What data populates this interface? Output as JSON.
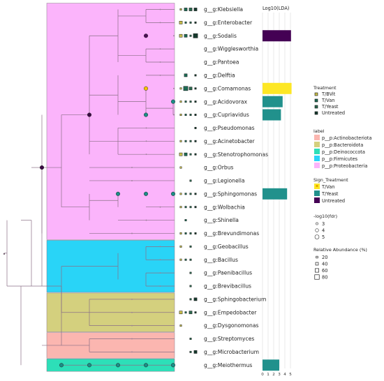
{
  "chart_data": {
    "type": "bar",
    "title": "Log10(LDA)",
    "xlim": [
      0,
      5
    ],
    "xticks": [
      "0",
      "1",
      "2",
      "3",
      "4",
      "5"
    ],
    "taxa": [
      {
        "name": "g__g:Klebsiella",
        "phylum": "Proteobacteria",
        "ab": [
          1,
          2,
          2,
          2
        ],
        "lda": null,
        "sign": null
      },
      {
        "name": "g__g:Enterobacter",
        "phylum": "Proteobacteria",
        "ab": [
          2,
          1,
          1,
          1
        ],
        "lda": null,
        "sign": null
      },
      {
        "name": "g__g:Sodalis",
        "phylum": "Proteobacteria",
        "ab": [
          2,
          2,
          1,
          3
        ],
        "lda": 5.1,
        "sign": "Untreated"
      },
      {
        "name": "g__g:Wigglesworthia",
        "phylum": "Proteobacteria",
        "ab": [
          0,
          0,
          0,
          0
        ],
        "lda": null,
        "sign": null
      },
      {
        "name": "g__g:Pantoea",
        "phylum": "Proteobacteria",
        "ab": [
          0,
          0,
          0,
          0
        ],
        "lda": null,
        "sign": null
      },
      {
        "name": "g__g:Delftia",
        "phylum": "Proteobacteria",
        "ab": [
          0,
          2,
          0,
          1
        ],
        "lda": null,
        "sign": null
      },
      {
        "name": "g__g:Comamonas",
        "phylum": "Proteobacteria",
        "ab": [
          1,
          3,
          2,
          1
        ],
        "lda": 5.2,
        "sign": "T/Van"
      },
      {
        "name": "g__g:Acidovorax",
        "phylum": "Proteobacteria",
        "ab": [
          1,
          1,
          1,
          1
        ],
        "lda": 3.6,
        "sign": "T/Yeast"
      },
      {
        "name": "g__g:Cupriavidus",
        "phylum": "Proteobacteria",
        "ab": [
          1,
          1,
          1,
          1
        ],
        "lda": 3.3,
        "sign": "T/Yeast"
      },
      {
        "name": "g__g:Pseudomonas",
        "phylum": "Proteobacteria",
        "ab": [
          0,
          0,
          0,
          1
        ],
        "lda": null,
        "sign": null
      },
      {
        "name": "g__g:Acinetobacter",
        "phylum": "Proteobacteria",
        "ab": [
          1,
          1,
          1,
          1
        ],
        "lda": null,
        "sign": null
      },
      {
        "name": "g__g:Stenotrophomonas",
        "phylum": "Proteobacteria",
        "ab": [
          2,
          2,
          1,
          1
        ],
        "lda": null,
        "sign": null
      },
      {
        "name": "g__g:Orbus",
        "phylum": "Proteobacteria",
        "ab": [
          1,
          0,
          0,
          0
        ],
        "lda": null,
        "sign": null
      },
      {
        "name": "g__g:Legionella",
        "phylum": "Proteobacteria",
        "ab": [
          0,
          0,
          1,
          0
        ],
        "lda": null,
        "sign": null
      },
      {
        "name": "g__g:Sphingomonas",
        "phylum": "Proteobacteria",
        "ab": [
          1,
          1,
          1,
          1
        ],
        "lda": 4.4,
        "sign": "T/Yeast"
      },
      {
        "name": "g__g:Wolbachia",
        "phylum": "Proteobacteria",
        "ab": [
          1,
          1,
          1,
          1
        ],
        "lda": null,
        "sign": null
      },
      {
        "name": "g__g:Shinella",
        "phylum": "Proteobacteria",
        "ab": [
          0,
          1,
          0,
          0
        ],
        "lda": null,
        "sign": null
      },
      {
        "name": "g__g:Brevundimonas",
        "phylum": "Proteobacteria",
        "ab": [
          1,
          1,
          1,
          1
        ],
        "lda": null,
        "sign": null
      },
      {
        "name": "g__g:Geobacillus",
        "phylum": "Firmicutes",
        "ab": [
          1,
          0,
          1,
          0
        ],
        "lda": null,
        "sign": null
      },
      {
        "name": "g__g:Bacillus",
        "phylum": "Firmicutes",
        "ab": [
          1,
          1,
          1,
          0
        ],
        "lda": null,
        "sign": null
      },
      {
        "name": "g__g:Paenibacillus",
        "phylum": "Firmicutes",
        "ab": [
          0,
          0,
          1,
          0
        ],
        "lda": null,
        "sign": null
      },
      {
        "name": "g__g:Brevibacillus",
        "phylum": "Firmicutes",
        "ab": [
          0,
          0,
          1,
          0
        ],
        "lda": null,
        "sign": null
      },
      {
        "name": "g__g:Sphingobacterium",
        "phylum": "Bacteroidota",
        "ab": [
          0,
          0,
          1,
          2
        ],
        "lda": null,
        "sign": null
      },
      {
        "name": "g__g:Empedobacter",
        "phylum": "Bacteroidota",
        "ab": [
          2,
          1,
          2,
          1
        ],
        "lda": null,
        "sign": null
      },
      {
        "name": "g__g:Dysgonomonas",
        "phylum": "Bacteroidota",
        "ab": [
          1,
          0,
          0,
          0
        ],
        "lda": null,
        "sign": null
      },
      {
        "name": "g__g:Streptomyces",
        "phylum": "Actinobacteriota",
        "ab": [
          0,
          0,
          1,
          0
        ],
        "lda": null,
        "sign": null
      },
      {
        "name": "g__g:Microbacterium",
        "phylum": "Actinobacteriota",
        "ab": [
          0,
          0,
          1,
          2
        ],
        "lda": null,
        "sign": null
      },
      {
        "name": "g__g:Meiothermus",
        "phylum": "Deinococcota",
        "ab": [
          0,
          0,
          0,
          0
        ],
        "lda": 3.0,
        "sign": "T/Yeast"
      }
    ],
    "sig_nodes": [
      {
        "x": 60,
        "row": 12.0,
        "color": "#3b0a45"
      },
      {
        "x": 128,
        "row": 8.0,
        "color": "#3b0a45"
      },
      {
        "x": 209,
        "row": 2.0,
        "color": "#4a0f55"
      },
      {
        "x": 209,
        "row": 6.0,
        "color": "#f5c400"
      },
      {
        "x": 209,
        "row": 8.0,
        "color": "#1a8d86"
      },
      {
        "x": 248,
        "row": 7.0,
        "color": "#1a8d86"
      },
      {
        "x": 169,
        "row": 14.0,
        "color": "#1a8d86"
      },
      {
        "x": 209,
        "row": 14.0,
        "color": "#1a8d86"
      },
      {
        "x": 248,
        "row": 14.0,
        "color": "#1a8d86"
      },
      {
        "x": 88,
        "row": 27.0,
        "color": "#1a8d86"
      },
      {
        "x": 128,
        "row": 27.0,
        "color": "#1a8d86"
      },
      {
        "x": 169,
        "row": 27.0,
        "color": "#1a8d86"
      },
      {
        "x": 209,
        "row": 27.0,
        "color": "#1a8d86"
      },
      {
        "x": 248,
        "row": 27.0,
        "color": "#1a8d86"
      }
    ],
    "treatment_colors": [
      "#b7a73e",
      "#1d6b54",
      "#2d6a50",
      "#163b2e"
    ],
    "legend": {
      "treatment": {
        "title": "Treatment",
        "items": [
          "T/BVit",
          "T/Van",
          "T/Yeast",
          "Untreated"
        ]
      },
      "label": {
        "title": "label",
        "items": [
          {
            "name": "p__p:Actinobacteriota",
            "color": "#fbb6b0"
          },
          {
            "name": "p__p:Bacteroidota",
            "color": "#d4d07e"
          },
          {
            "name": "p__p:Deinococcota",
            "color": "#2ddfb8"
          },
          {
            "name": "p__p:Firmicutes",
            "color": "#29d4f7"
          },
          {
            "name": "p__p:Proteobacteria",
            "color": "#fbb4fb"
          }
        ]
      },
      "sign": {
        "title": "Sign_Treatment",
        "items": [
          {
            "name": "T/Van",
            "color": "#fde725"
          },
          {
            "name": "T/Yeast",
            "color": "#21918c"
          },
          {
            "name": "Untreated",
            "color": "#440154"
          }
        ]
      },
      "fdr": {
        "title": "-log10(fdr)",
        "items": [
          "3",
          "4",
          "5"
        ]
      },
      "abundance": {
        "title": "Relative Abundance (%)",
        "items": [
          "20",
          "40",
          "60",
          "80"
        ]
      }
    }
  }
}
